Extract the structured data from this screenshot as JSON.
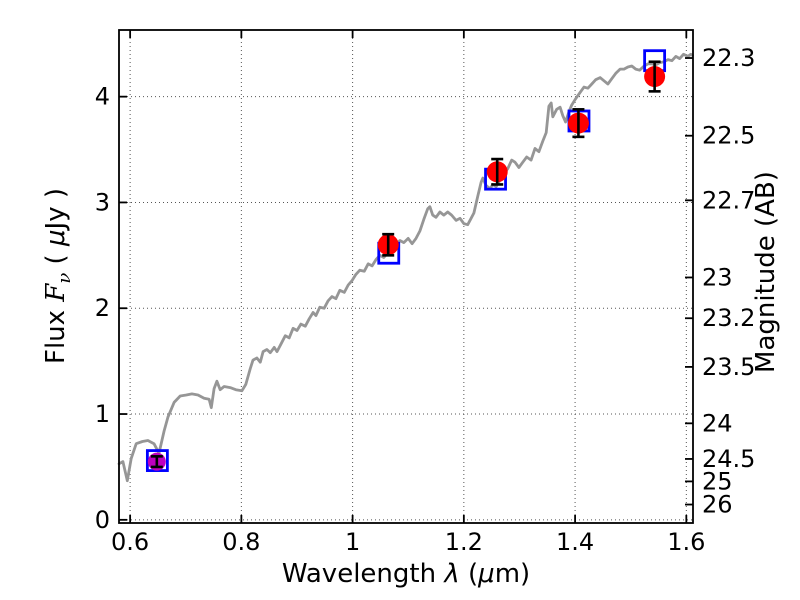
{
  "figure": {
    "background": "#ffffff",
    "title": ""
  },
  "chart_data": {
    "type": "line",
    "title": "",
    "xlabel_parts": [
      {
        "t": "Wavelength  "
      },
      {
        "t": "λ"
      },
      {
        "t": " ("
      },
      {
        "t": "μ"
      },
      {
        "t": "m)"
      }
    ],
    "ylabel_left_parts": [
      {
        "t": "Flux  "
      },
      {
        "t": "F"
      },
      {
        "t": "ν"
      },
      {
        "t": " ( "
      },
      {
        "t": "μ"
      },
      {
        "t": "Jy )"
      }
    ],
    "ylabel_right": "Magnitude (AB)",
    "xlim": [
      0.58,
      1.612
    ],
    "ylim": [
      -0.03,
      4.63
    ],
    "grid": "dotted",
    "grid_color": "#555555",
    "frame_color": "#000000",
    "x_ticks": [
      0.6,
      0.8,
      1.0,
      1.2,
      1.4,
      1.6
    ],
    "x_tick_labels": [
      "0.6",
      "0.8",
      "1",
      "1.2",
      "1.4",
      "1.6"
    ],
    "y_ticks": [
      0,
      1,
      2,
      3,
      4
    ],
    "y_tick_labels": [
      "0",
      "1",
      "2",
      "3",
      "4"
    ],
    "right_axis": {
      "label": "Magnitude (AB)",
      "ab_zeropoint": 23.9,
      "tick_mags": [
        22.3,
        22.5,
        22.7,
        23,
        23.2,
        23.5,
        24,
        24.5,
        25,
        26
      ],
      "tick_labels": [
        "22.3",
        "22.5",
        "22.7",
        "23",
        "23.2",
        "23.5",
        "24",
        "24.5",
        "25",
        "26"
      ]
    },
    "spectrum": {
      "name": "model-spectrum",
      "color": "#969696",
      "line_width": 2.8,
      "points": [
        [
          0.58,
          0.53
        ],
        [
          0.587,
          0.55
        ],
        [
          0.595,
          0.37
        ],
        [
          0.602,
          0.58
        ],
        [
          0.611,
          0.72
        ],
        [
          0.622,
          0.74
        ],
        [
          0.632,
          0.75
        ],
        [
          0.643,
          0.72
        ],
        [
          0.652,
          0.63
        ],
        [
          0.661,
          0.84
        ],
        [
          0.668,
          0.97
        ],
        [
          0.679,
          1.11
        ],
        [
          0.69,
          1.17
        ],
        [
          0.701,
          1.18
        ],
        [
          0.711,
          1.19
        ],
        [
          0.722,
          1.18
        ],
        [
          0.733,
          1.15
        ],
        [
          0.742,
          1.14
        ],
        [
          0.746,
          1.06
        ],
        [
          0.751,
          1.24
        ],
        [
          0.756,
          1.31
        ],
        [
          0.762,
          1.23
        ],
        [
          0.769,
          1.26
        ],
        [
          0.78,
          1.25
        ],
        [
          0.79,
          1.23
        ],
        [
          0.801,
          1.22
        ],
        [
          0.808,
          1.28
        ],
        [
          0.816,
          1.43
        ],
        [
          0.821,
          1.51
        ],
        [
          0.828,
          1.53
        ],
        [
          0.834,
          1.49
        ],
        [
          0.839,
          1.59
        ],
        [
          0.846,
          1.61
        ],
        [
          0.852,
          1.58
        ],
        [
          0.859,
          1.63
        ],
        [
          0.864,
          1.59
        ],
        [
          0.871,
          1.66
        ],
        [
          0.879,
          1.74
        ],
        [
          0.886,
          1.72
        ],
        [
          0.893,
          1.81
        ],
        [
          0.9,
          1.79
        ],
        [
          0.907,
          1.85
        ],
        [
          0.915,
          1.83
        ],
        [
          0.922,
          1.9
        ],
        [
          0.929,
          1.96
        ],
        [
          0.934,
          1.93
        ],
        [
          0.941,
          2.01
        ],
        [
          0.949,
          2.0
        ],
        [
          0.956,
          2.07
        ],
        [
          0.963,
          2.11
        ],
        [
          0.97,
          2.09
        ],
        [
          0.977,
          2.17
        ],
        [
          0.985,
          2.15
        ],
        [
          0.992,
          2.22
        ],
        [
          0.999,
          2.26
        ],
        [
          1.006,
          2.32
        ],
        [
          1.013,
          2.36
        ],
        [
          1.021,
          2.35
        ],
        [
          1.028,
          2.42
        ],
        [
          1.035,
          2.4
        ],
        [
          1.042,
          2.46
        ],
        [
          1.049,
          2.5
        ],
        [
          1.056,
          2.48
        ],
        [
          1.064,
          2.53
        ],
        [
          1.071,
          2.56
        ],
        [
          1.078,
          2.6
        ],
        [
          1.085,
          2.64
        ],
        [
          1.092,
          2.62
        ],
        [
          1.1,
          2.66
        ],
        [
          1.107,
          2.61
        ],
        [
          1.114,
          2.66
        ],
        [
          1.121,
          2.73
        ],
        [
          1.128,
          2.84
        ],
        [
          1.135,
          2.94
        ],
        [
          1.139,
          2.96
        ],
        [
          1.144,
          2.88
        ],
        [
          1.15,
          2.86
        ],
        [
          1.157,
          2.91
        ],
        [
          1.164,
          2.88
        ],
        [
          1.171,
          2.91
        ],
        [
          1.178,
          2.88
        ],
        [
          1.186,
          2.83
        ],
        [
          1.193,
          2.85
        ],
        [
          1.2,
          2.8
        ],
        [
          1.207,
          2.79
        ],
        [
          1.213,
          2.85
        ],
        [
          1.218,
          2.9
        ],
        [
          1.225,
          3.06
        ],
        [
          1.231,
          3.19
        ],
        [
          1.234,
          3.23
        ],
        [
          1.24,
          3.16
        ],
        [
          1.247,
          3.13
        ],
        [
          1.252,
          3.17
        ],
        [
          1.258,
          3.15
        ],
        [
          1.265,
          3.21
        ],
        [
          1.272,
          3.27
        ],
        [
          1.279,
          3.32
        ],
        [
          1.286,
          3.4
        ],
        [
          1.292,
          3.38
        ],
        [
          1.299,
          3.33
        ],
        [
          1.306,
          3.38
        ],
        [
          1.313,
          3.43
        ],
        [
          1.321,
          3.4
        ],
        [
          1.328,
          3.51
        ],
        [
          1.335,
          3.48
        ],
        [
          1.342,
          3.58
        ],
        [
          1.348,
          3.66
        ],
        [
          1.353,
          3.91
        ],
        [
          1.357,
          3.94
        ],
        [
          1.36,
          3.81
        ],
        [
          1.367,
          3.88
        ],
        [
          1.373,
          3.9
        ],
        [
          1.378,
          3.82
        ],
        [
          1.383,
          3.76
        ],
        [
          1.389,
          3.86
        ],
        [
          1.394,
          3.92
        ],
        [
          1.401,
          3.98
        ],
        [
          1.409,
          4.04
        ],
        [
          1.416,
          4.09
        ],
        [
          1.423,
          4.08
        ],
        [
          1.43,
          4.12
        ],
        [
          1.437,
          4.16
        ],
        [
          1.445,
          4.18
        ],
        [
          1.452,
          4.15
        ],
        [
          1.459,
          4.12
        ],
        [
          1.466,
          4.17
        ],
        [
          1.473,
          4.22
        ],
        [
          1.481,
          4.26
        ],
        [
          1.488,
          4.26
        ],
        [
          1.495,
          4.28
        ],
        [
          1.502,
          4.29
        ],
        [
          1.509,
          4.26
        ],
        [
          1.516,
          4.25
        ],
        [
          1.524,
          4.29
        ],
        [
          1.531,
          4.31
        ],
        [
          1.538,
          4.31
        ],
        [
          1.545,
          4.3
        ],
        [
          1.552,
          4.32
        ],
        [
          1.56,
          4.33
        ],
        [
          1.567,
          4.35
        ],
        [
          1.574,
          4.34
        ],
        [
          1.581,
          4.38
        ],
        [
          1.588,
          4.36
        ],
        [
          1.595,
          4.4
        ],
        [
          1.603,
          4.38
        ],
        [
          1.608,
          4.4
        ],
        [
          1.611,
          4.39
        ]
      ]
    },
    "model_photometry": {
      "name": "model-photometry",
      "marker": "open-square",
      "color": "#0000ff",
      "size": 20,
      "stroke_width": 2.8,
      "points": [
        [
          0.649,
          0.56
        ],
        [
          1.065,
          2.52
        ],
        [
          1.257,
          3.22
        ],
        [
          1.407,
          3.77
        ],
        [
          1.543,
          4.34
        ]
      ]
    },
    "observed_photometry": {
      "name": "observed-photometry",
      "marker": "filled-circle",
      "errorbar_color": "#000000",
      "points": [
        {
          "lambda": 0.648,
          "flux": 0.55,
          "err": 0.05,
          "color": "#bf00bf",
          "radius": 9
        },
        {
          "lambda": 1.064,
          "flux": 2.6,
          "err": 0.1,
          "color": "#ff0000",
          "radius": 10.5
        },
        {
          "lambda": 1.26,
          "flux": 3.29,
          "err": 0.12,
          "color": "#ff0000",
          "radius": 10.5
        },
        {
          "lambda": 1.406,
          "flux": 3.75,
          "err": 0.13,
          "color": "#ff0000",
          "radius": 10.5
        },
        {
          "lambda": 1.543,
          "flux": 4.19,
          "err": 0.14,
          "color": "#ff0000",
          "radius": 10.5
        }
      ]
    }
  }
}
